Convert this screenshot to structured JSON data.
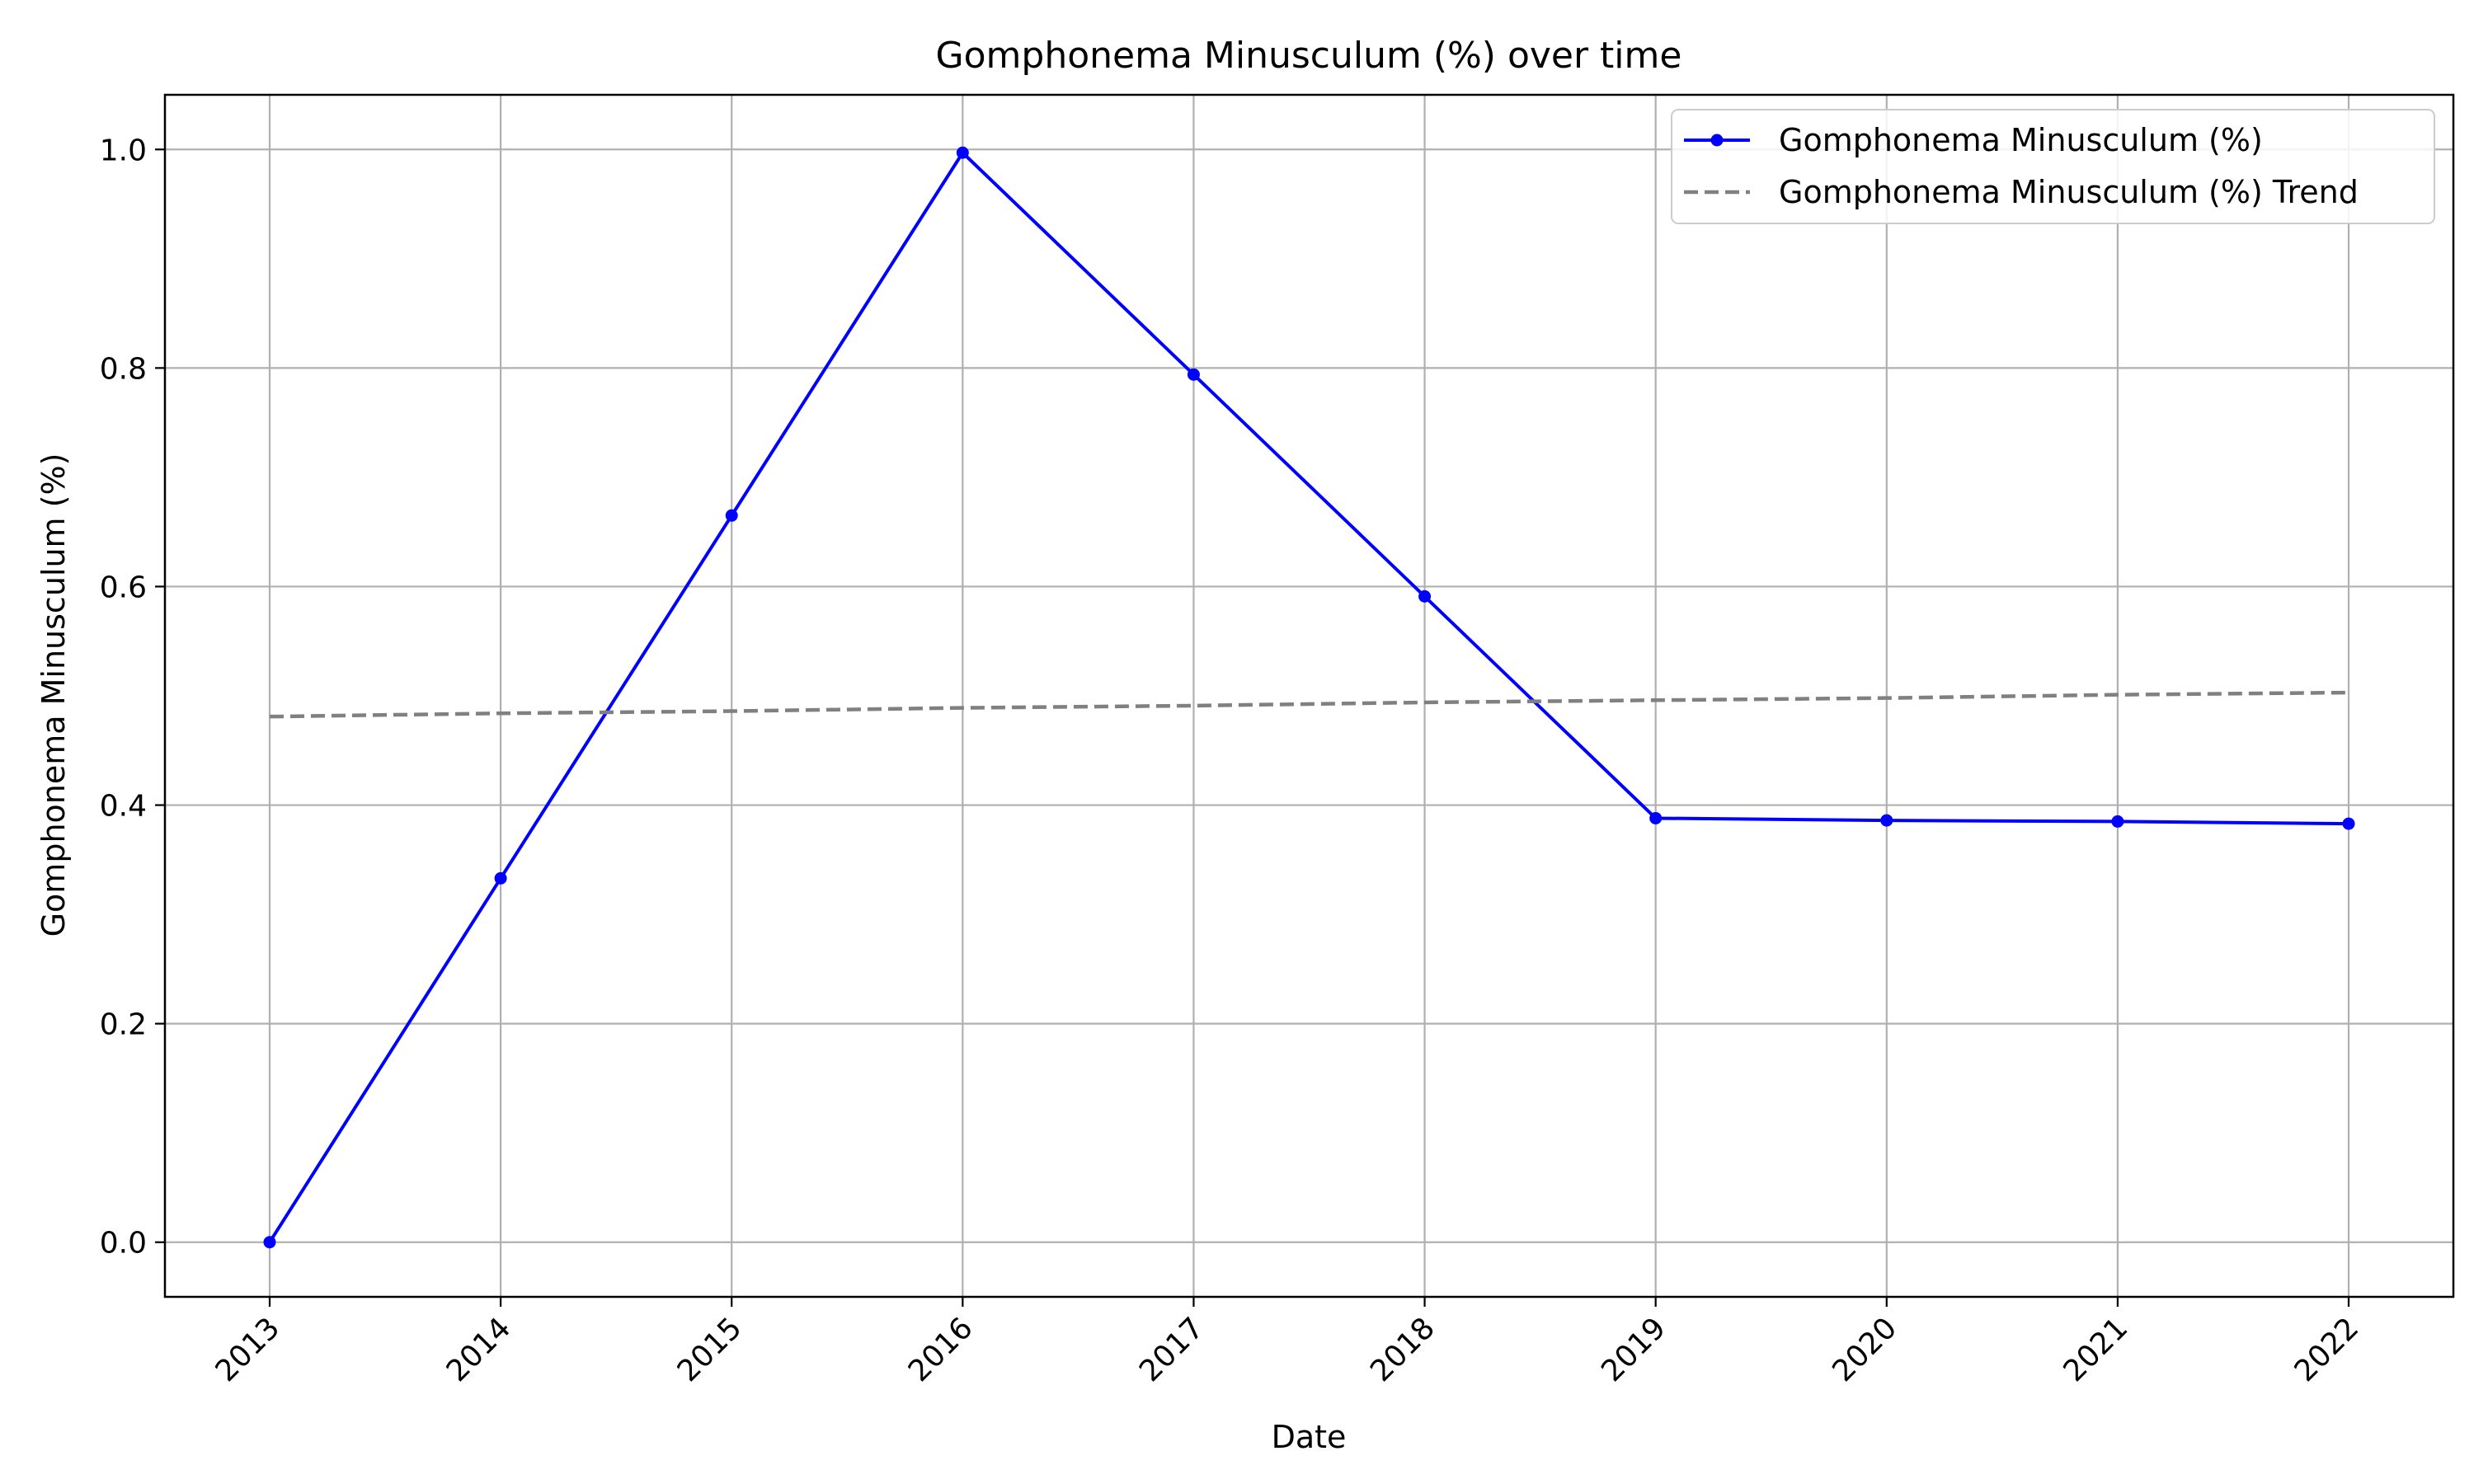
{
  "chart_data": {
    "type": "line",
    "title": "Gomphonema Minusculum (%) over time",
    "xlabel": "Date",
    "ylabel": "Gomphonema Minusculum (%)",
    "x": [
      "2013",
      "2014",
      "2015",
      "2016",
      "2017",
      "2018",
      "2019",
      "2020",
      "2021",
      "2022"
    ],
    "x_tick_labels": [
      "2013",
      "2014",
      "2015",
      "2016",
      "2017",
      "2018",
      "2019",
      "2020",
      "2021",
      "2022"
    ],
    "y_tick_labels": [
      "0.0",
      "0.2",
      "0.4",
      "0.6",
      "0.8",
      "1.0"
    ],
    "y_ticks": [
      0.0,
      0.2,
      0.4,
      0.6,
      0.8,
      1.0
    ],
    "ylim": [
      -0.05,
      1.05
    ],
    "xlim": [
      "2012-07",
      "2022-09"
    ],
    "grid": true,
    "legend_position": "top-right",
    "series": [
      {
        "name": "Gomphonema Minusculum (%)",
        "style": "solid-with-markers",
        "color": "#0000ff",
        "values": [
          0.0,
          0.333,
          0.665,
          0.997,
          0.794,
          0.591,
          0.388,
          0.386,
          0.385,
          0.383
        ]
      },
      {
        "name": "Gomphonema Minusculum (%) Trend",
        "style": "dashed",
        "color": "#808080",
        "values": [
          0.481,
          0.484,
          0.486,
          0.489,
          0.491,
          0.494,
          0.496,
          0.498,
          0.501,
          0.503
        ]
      }
    ]
  }
}
